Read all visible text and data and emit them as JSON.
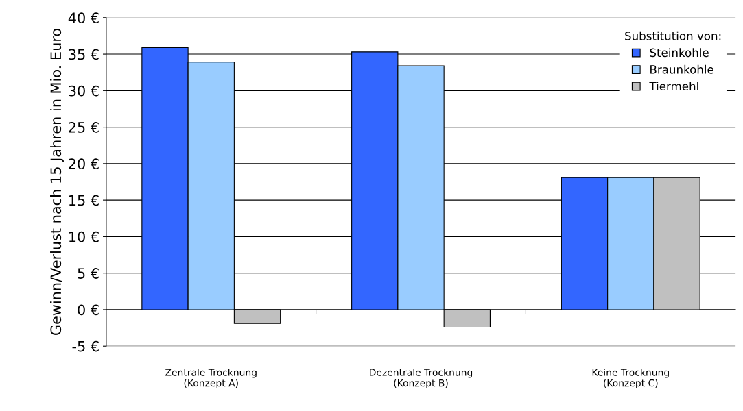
{
  "chart_data": {
    "type": "bar",
    "ylabel": "Gewinn/Verlust nach 15 Jahren in Mio. Euro",
    "legend_title": "Substitution von:",
    "categories": [
      "Zentrale Trocknung\n(Konzept A)",
      "Dezentrale Trocknung\n(Konzept B)",
      "Keine Trocknung\n(Konzept C)"
    ],
    "series": [
      {
        "name": "Steinkohle",
        "color": "#3366ff",
        "values": [
          35.9,
          35.3,
          18.1
        ]
      },
      {
        "name": "Braunkohle",
        "color": "#99ccff",
        "values": [
          33.9,
          33.4,
          18.1
        ]
      },
      {
        "name": "Tiermehl",
        "color": "#c0c0c0",
        "values": [
          -1.9,
          -2.4,
          18.1
        ]
      }
    ],
    "ylim": [
      -5,
      40
    ],
    "yticks": [
      {
        "value": -5,
        "label": "-5 €"
      },
      {
        "value": 0,
        "label": "0 €"
      },
      {
        "value": 5,
        "label": "5 €"
      },
      {
        "value": 10,
        "label": "10 €"
      },
      {
        "value": 15,
        "label": "15 €"
      },
      {
        "value": 20,
        "label": "20 €"
      },
      {
        "value": 25,
        "label": "25 €"
      },
      {
        "value": 30,
        "label": "30 €"
      },
      {
        "value": 35,
        "label": "35 €"
      },
      {
        "value": 40,
        "label": "40 €"
      }
    ],
    "grid": "y",
    "legend": "top right"
  }
}
